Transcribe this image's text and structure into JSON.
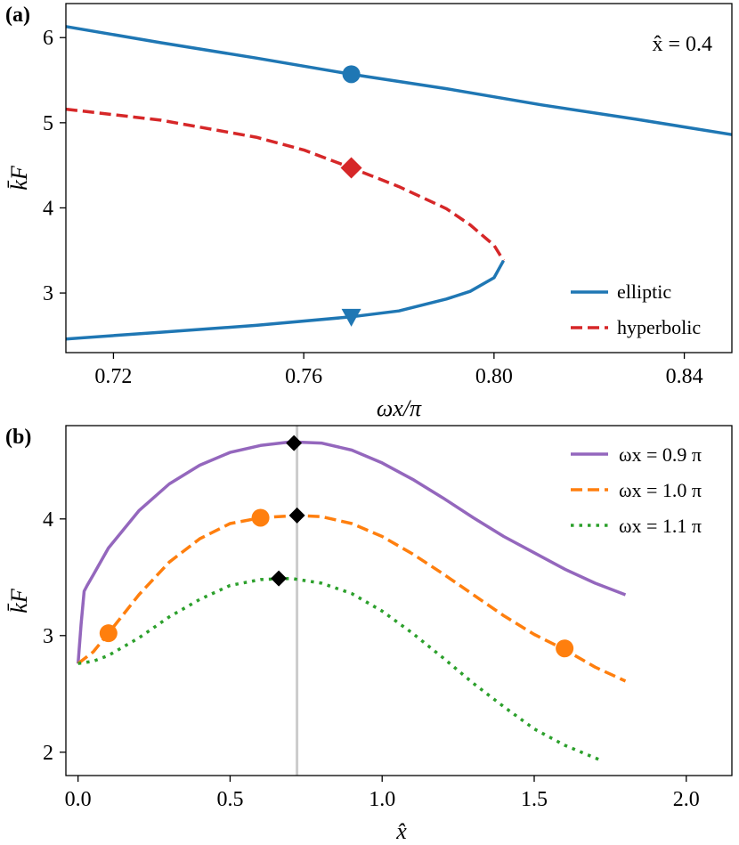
{
  "chart_data": [
    {
      "panel": "(a)",
      "type": "line",
      "annotation": "x̂ = 0.4",
      "xlabel": "ωx/π",
      "ylabel": "k̄F",
      "xlim": [
        0.71,
        0.85
      ],
      "ylim": [
        2.3,
        6.4
      ],
      "xticks": [
        0.72,
        0.76,
        0.8,
        0.84
      ],
      "xtick_labels": [
        "0.72",
        "0.76",
        "0.80",
        "0.84"
      ],
      "yticks": [
        3,
        4,
        5,
        6
      ],
      "ytick_labels": [
        "3",
        "4",
        "5",
        "6"
      ],
      "legend_position": "lower-right",
      "legend": [
        {
          "label": "elliptic",
          "color": "#1f77b4",
          "style": "solid"
        },
        {
          "label": "hyperbolic",
          "color": "#d62728",
          "style": "dashed"
        }
      ],
      "series": [
        {
          "name": "elliptic-upper",
          "style": "solid",
          "color": "#1f77b4",
          "x": [
            0.71,
            0.73,
            0.75,
            0.77,
            0.79,
            0.81,
            0.83,
            0.85
          ],
          "y": [
            6.13,
            5.94,
            5.76,
            5.57,
            5.4,
            5.21,
            5.04,
            4.86
          ]
        },
        {
          "name": "hyperbolic",
          "style": "dashed",
          "color": "#d62728",
          "x": [
            0.71,
            0.73,
            0.75,
            0.76,
            0.77,
            0.78,
            0.79,
            0.795,
            0.8,
            0.802
          ],
          "y": [
            5.16,
            5.03,
            4.83,
            4.68,
            4.47,
            4.25,
            3.99,
            3.8,
            3.56,
            3.38
          ]
        },
        {
          "name": "elliptic-lower",
          "style": "solid",
          "color": "#1f77b4",
          "x": [
            0.802,
            0.8,
            0.795,
            0.79,
            0.78,
            0.77,
            0.75,
            0.73,
            0.71
          ],
          "y": [
            3.38,
            3.18,
            3.02,
            2.93,
            2.79,
            2.72,
            2.62,
            2.54,
            2.46
          ]
        }
      ],
      "markers": [
        {
          "shape": "circle",
          "color": "#1f77b4",
          "x": 0.77,
          "y": 5.57
        },
        {
          "shape": "diamond",
          "color": "#d62728",
          "x": 0.77,
          "y": 4.47
        },
        {
          "shape": "triangle-down",
          "color": "#1f77b4",
          "x": 0.77,
          "y": 2.72
        }
      ]
    },
    {
      "panel": "(b)",
      "type": "line",
      "xlabel": "x̂",
      "ylabel": "k̄F",
      "xlim": [
        -0.04,
        2.15
      ],
      "ylim": [
        1.8,
        4.8
      ],
      "xticks": [
        0.0,
        0.5,
        1.0,
        1.5,
        2.0
      ],
      "xtick_labels": [
        "0.0",
        "0.5",
        "1.0",
        "1.5",
        "2.0"
      ],
      "yticks": [
        2,
        3,
        4
      ],
      "ytick_labels": [
        "2",
        "3",
        "4"
      ],
      "vertical_line": 0.72,
      "legend_position": "upper-right",
      "legend": [
        {
          "label": "ωx = 0.9 π",
          "color": "#9467bd",
          "style": "solid"
        },
        {
          "label": "ωx = 1.0 π",
          "color": "#ff7f0e",
          "style": "dashed"
        },
        {
          "label": "ωx = 1.1 π",
          "color": "#2ca02c",
          "style": "dotted"
        }
      ],
      "series": [
        {
          "name": "ωx = 0.9 π",
          "style": "solid",
          "color": "#9467bd",
          "x": [
            0.0,
            0.01,
            0.02,
            0.03,
            0.05,
            0.1,
            0.2,
            0.3,
            0.4,
            0.5,
            0.6,
            0.7,
            0.8,
            0.9,
            1.0,
            1.1,
            1.2,
            1.3,
            1.4,
            1.5,
            1.6,
            1.7,
            1.8
          ],
          "y": [
            2.76,
            3.1,
            3.38,
            3.43,
            3.52,
            3.75,
            4.07,
            4.3,
            4.46,
            4.57,
            4.63,
            4.66,
            4.65,
            4.59,
            4.48,
            4.34,
            4.18,
            4.01,
            3.85,
            3.71,
            3.57,
            3.45,
            3.35
          ]
        },
        {
          "name": "ωx = 1.0 π",
          "style": "dashed",
          "color": "#ff7f0e",
          "x": [
            0.0,
            0.05,
            0.1,
            0.2,
            0.3,
            0.4,
            0.5,
            0.6,
            0.72,
            0.8,
            0.9,
            1.0,
            1.1,
            1.2,
            1.3,
            1.4,
            1.5,
            1.6,
            1.7,
            1.8
          ],
          "y": [
            2.76,
            2.86,
            3.02,
            3.35,
            3.63,
            3.83,
            3.96,
            4.01,
            4.03,
            4.02,
            3.96,
            3.85,
            3.7,
            3.53,
            3.35,
            3.17,
            3.01,
            2.88,
            2.73,
            2.61
          ]
        },
        {
          "name": "ωx = 1.1 π",
          "style": "dotted",
          "color": "#2ca02c",
          "x": [
            0.0,
            0.05,
            0.1,
            0.2,
            0.3,
            0.4,
            0.5,
            0.6,
            0.7,
            0.8,
            0.9,
            1.0,
            1.1,
            1.2,
            1.3,
            1.4,
            1.5,
            1.6,
            1.72
          ],
          "y": [
            2.76,
            2.78,
            2.83,
            2.98,
            3.16,
            3.31,
            3.43,
            3.48,
            3.49,
            3.45,
            3.36,
            3.21,
            3.02,
            2.81,
            2.59,
            2.39,
            2.2,
            2.06,
            1.93
          ]
        }
      ],
      "markers": [
        {
          "shape": "diamond",
          "color": "#000000",
          "x": 0.71,
          "y": 4.65
        },
        {
          "shape": "diamond",
          "color": "#000000",
          "x": 0.72,
          "y": 4.03
        },
        {
          "shape": "diamond",
          "color": "#000000",
          "x": 0.66,
          "y": 3.49
        },
        {
          "shape": "circle",
          "color": "#ff7f0e",
          "x": 0.1,
          "y": 3.02
        },
        {
          "shape": "circle",
          "color": "#ff7f0e",
          "x": 0.6,
          "y": 4.01
        },
        {
          "shape": "circle",
          "color": "#ff7f0e",
          "x": 1.6,
          "y": 2.89
        }
      ]
    }
  ]
}
